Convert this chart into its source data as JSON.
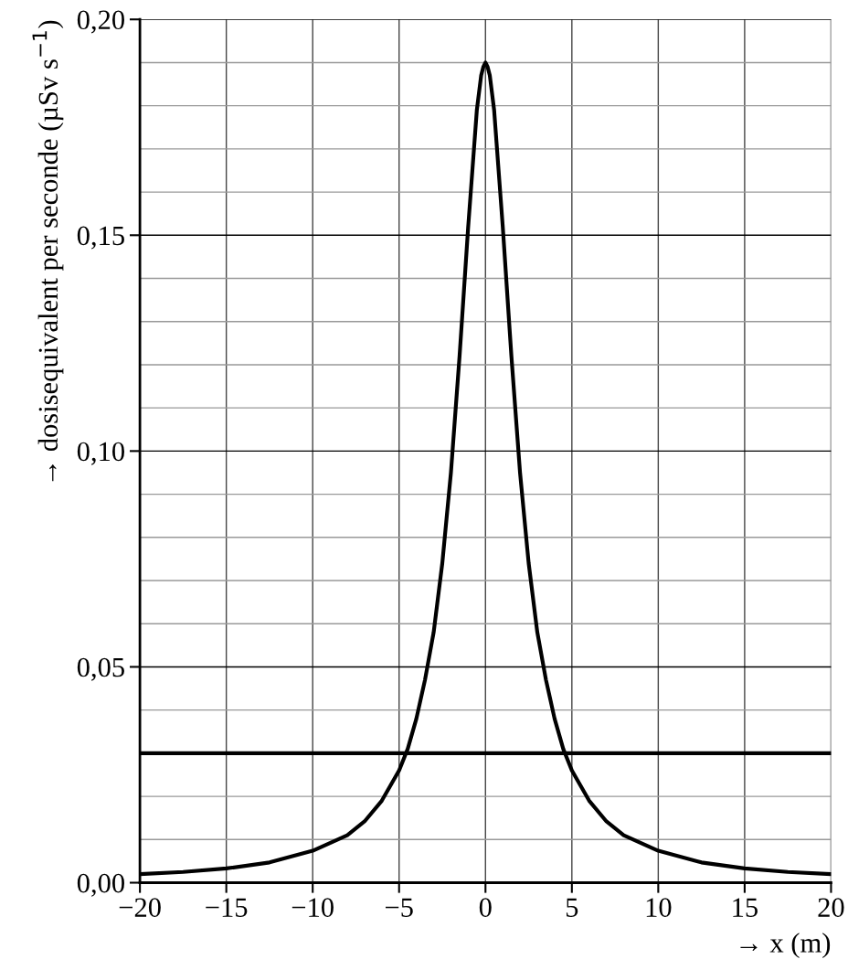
{
  "chart_data": {
    "type": "line",
    "xlabel": "→ x (m)",
    "ylabel": "→ dosisequivalent per seconde (µSv s$^{−1}$)",
    "x": [
      -20,
      -17.5,
      -15,
      -12.5,
      -10,
      -8,
      -7,
      -6,
      -5,
      -4.5,
      -4,
      -3.5,
      -3,
      -2.5,
      -2,
      -1.5,
      -1,
      -0.5,
      -0.25,
      -0.125,
      0,
      0.125,
      0.25,
      0.5,
      1,
      1.5,
      2,
      2.5,
      3,
      3.5,
      4,
      4.5,
      5,
      6,
      7,
      8,
      10,
      12.5,
      15,
      17.5,
      20
    ],
    "series": [
      {
        "color": "#000000",
        "values": [
          0.002,
          0.0025,
          0.0033,
          0.0047,
          0.0074,
          0.011,
          0.0142,
          0.019,
          0.026,
          0.031,
          0.038,
          0.047,
          0.058,
          0.074,
          0.095,
          0.122,
          0.152,
          0.179,
          0.187,
          0.189,
          0.19,
          0.189,
          0.187,
          0.179,
          0.152,
          0.122,
          0.095,
          0.074,
          0.058,
          0.047,
          0.038,
          0.031,
          0.026,
          0.019,
          0.0142,
          0.011,
          0.0074,
          0.0047,
          0.0033,
          0.0025,
          0.002
        ]
      }
    ],
    "xlim": [
      -20,
      20
    ],
    "xticks": [
      {
        "value": -20,
        "label": "−20"
      },
      {
        "value": -15,
        "label": "−15"
      },
      {
        "value": -10,
        "label": "−10"
      },
      {
        "value": -5,
        "label": "−5"
      },
      0,
      5,
      10,
      15,
      20
    ],
    "ylim": [
      0,
      0.2
    ],
    "yticks": [
      {
        "value": 0,
        "label": "0,00"
      },
      {
        "value": 0.01,
        "label": null
      },
      {
        "value": 0.02,
        "label": null
      },
      {
        "value": 0.03,
        "label": null
      },
      {
        "value": 0.04,
        "label": null
      },
      {
        "value": 0.05,
        "label": "0,05"
      },
      {
        "value": 0.06,
        "label": null
      },
      {
        "value": 0.07,
        "label": null
      },
      {
        "value": 0.08,
        "label": null
      },
      {
        "value": 0.09,
        "label": null
      },
      {
        "value": 0.1,
        "label": "0,10"
      },
      {
        "value": 0.11,
        "label": null
      },
      {
        "value": 0.12,
        "label": null
      },
      {
        "value": 0.13,
        "label": null
      },
      {
        "value": 0.14,
        "label": null
      },
      {
        "value": 0.15,
        "label": "0,15"
      },
      {
        "value": 0.16,
        "label": null
      },
      {
        "value": 0.17,
        "label": null
      },
      {
        "value": 0.18,
        "label": null
      },
      {
        "value": 0.19,
        "label": null
      },
      {
        "value": 0.2,
        "label": "0,20"
      }
    ],
    "ref_lines": [
      {
        "axis": "y",
        "value": 0.03,
        "color": "#000000",
        "line_style": "solid"
      }
    ],
    "grid": true,
    "legend": false,
    "marker": "none",
    "line_style": "solid"
  }
}
